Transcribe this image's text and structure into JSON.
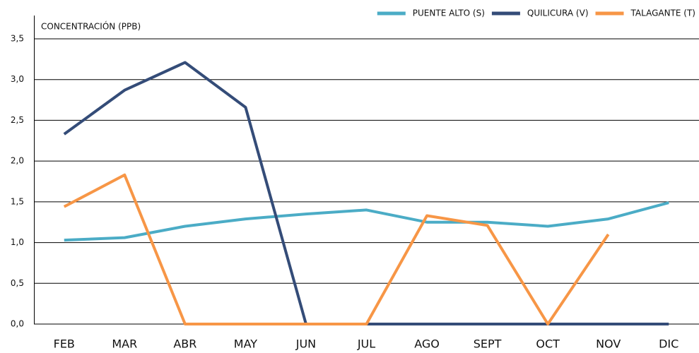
{
  "chart_data": {
    "type": "line",
    "y_label": "CONCENTRACIÓN (PPB)",
    "categories": [
      "FEB",
      "MAR",
      "ABR",
      "MAY",
      "JUN",
      "JUL",
      "AGO",
      "SEPT",
      "OCT",
      "NOV",
      "DIC"
    ],
    "series": [
      {
        "name": "PUENTE ALTO (S)",
        "color": "#4bacc6",
        "values": [
          1.03,
          1.06,
          1.2,
          1.29,
          1.35,
          1.4,
          1.25,
          1.25,
          1.2,
          1.29,
          1.49
        ]
      },
      {
        "name": "QUILICURA (V)",
        "color": "#344c78",
        "values": [
          2.33,
          2.87,
          3.21,
          2.66,
          0,
          0,
          0,
          0,
          0,
          0,
          0
        ]
      },
      {
        "name": "TALAGANTE (T)",
        "color": "#f79646",
        "values": [
          1.44,
          1.83,
          0,
          0,
          0,
          0,
          1.33,
          1.21,
          0,
          1.1,
          null
        ]
      }
    ],
    "ylim": [
      0,
      3.5
    ],
    "yticks": [
      {
        "value": 0,
        "label": "0,0"
      },
      {
        "value": 0.5,
        "label": "0,5"
      },
      {
        "value": 1,
        "label": "1,0"
      },
      {
        "value": 1.5,
        "label": "1,5"
      },
      {
        "value": 2,
        "label": "2,0"
      },
      {
        "value": 2.5,
        "label": "2,5"
      },
      {
        "value": 3,
        "label": "3,0"
      },
      {
        "value": 3.5,
        "label": "3,5"
      }
    ],
    "grid": true,
    "legend": "top-right"
  }
}
